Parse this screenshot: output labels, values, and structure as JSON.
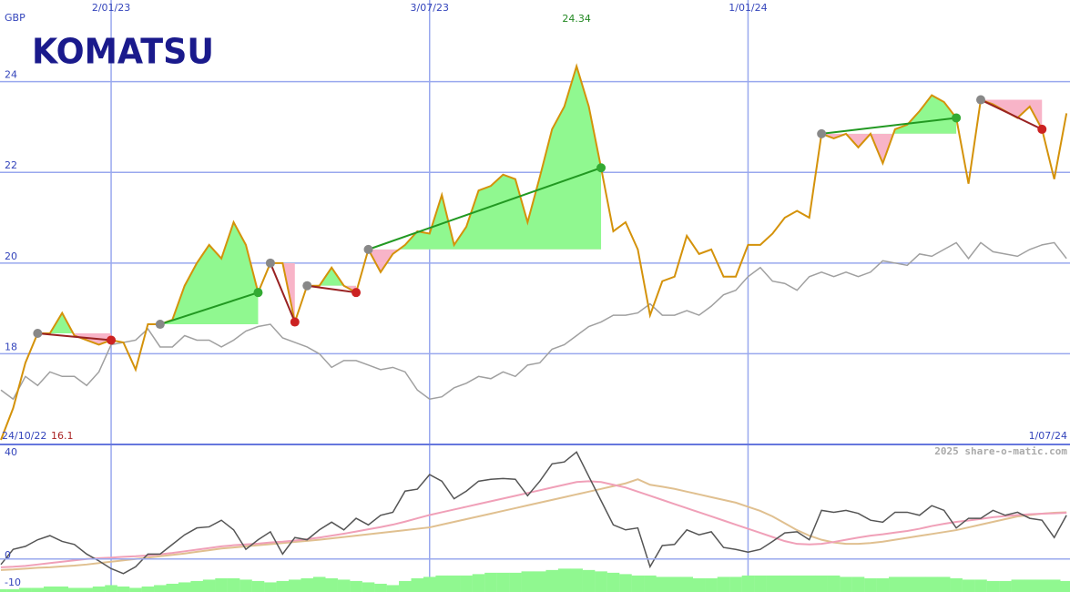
{
  "logo": "KOMATSU",
  "credit": "2025 share-o-matic.com",
  "chart_data": [
    {
      "type": "line",
      "y_unit": "GBP",
      "start_label": "24/10/22",
      "end_label": "1/07/24",
      "max_value": 24.34,
      "min_value": 16.1,
      "categories": [
        null,
        null,
        null,
        null,
        null,
        null,
        null,
        null,
        null,
        "2/01/23",
        null,
        null,
        null,
        null,
        null,
        null,
        null,
        null,
        null,
        null,
        null,
        null,
        null,
        null,
        null,
        null,
        null,
        null,
        null,
        null,
        null,
        null,
        null,
        null,
        null,
        "3/07/23",
        null,
        null,
        null,
        null,
        null,
        null,
        null,
        null,
        null,
        null,
        null,
        null,
        null,
        null,
        null,
        null,
        null,
        null,
        null,
        null,
        null,
        null,
        null,
        null,
        null,
        "1/01/24",
        null,
        null,
        null,
        null,
        null,
        null,
        null,
        null,
        null,
        null,
        null,
        null,
        null,
        null,
        null,
        null,
        null,
        null,
        null,
        null,
        null,
        null,
        null,
        null,
        null,
        null
      ],
      "ylim": [
        16,
        25.8
      ],
      "yticks": [
        18,
        20,
        22,
        24
      ],
      "grid": true,
      "series": [
        {
          "color": "#a0a0a0",
          "values": [
            17.2,
            17.0,
            17.5,
            17.3,
            17.6,
            17.5,
            17.5,
            17.3,
            17.6,
            18.2,
            18.25,
            18.3,
            18.55,
            18.15,
            18.15,
            18.4,
            18.3,
            18.3,
            18.15,
            18.3,
            18.5,
            18.6,
            18.65,
            18.35,
            18.25,
            18.15,
            18.0,
            17.7,
            17.85,
            17.85,
            17.75,
            17.65,
            17.7,
            17.6,
            17.2,
            17.0,
            17.05,
            17.25,
            17.35,
            17.5,
            17.45,
            17.6,
            17.5,
            17.75,
            17.8,
            18.1,
            18.2,
            18.4,
            18.6,
            18.7,
            18.85,
            18.85,
            18.9,
            19.1,
            18.85,
            18.85,
            18.95,
            18.85,
            19.05,
            19.3,
            19.4,
            19.7,
            19.9,
            19.6,
            19.55,
            19.4,
            19.7,
            19.8,
            19.7,
            19.8,
            19.7,
            19.8,
            20.05,
            20.0,
            19.95,
            20.2,
            20.15,
            20.3,
            20.45,
            20.1,
            20.45,
            20.25,
            20.2,
            20.15,
            20.3,
            20.4,
            20.45,
            20.1
          ]
        },
        {
          "color": "#d4920a",
          "values": [
            16.1,
            16.8,
            17.8,
            18.45,
            18.45,
            18.9,
            18.4,
            18.3,
            18.2,
            18.3,
            18.25,
            17.65,
            18.65,
            18.65,
            18.75,
            19.5,
            20.0,
            20.4,
            20.1,
            20.9,
            20.4,
            19.35,
            20.0,
            20.0,
            18.7,
            19.5,
            19.5,
            19.9,
            19.5,
            19.35,
            20.3,
            19.8,
            20.2,
            20.4,
            20.7,
            20.65,
            21.5,
            20.4,
            20.8,
            21.6,
            21.7,
            21.95,
            21.85,
            20.9,
            21.9,
            22.95,
            23.45,
            24.34,
            23.45,
            22.1,
            20.7,
            20.9,
            20.3,
            18.85,
            19.6,
            19.7,
            20.6,
            20.2,
            20.3,
            19.7,
            19.7,
            20.4,
            20.4,
            20.65,
            21.0,
            21.15,
            21.0,
            22.85,
            22.75,
            22.85,
            22.55,
            22.85,
            22.2,
            22.95,
            23.05,
            23.35,
            23.7,
            23.55,
            23.2,
            21.75,
            23.6,
            23.5,
            23.35,
            23.2,
            23.45,
            22.95,
            21.85,
            23.3
          ]
        }
      ],
      "signals": [
        {
          "start": 3,
          "end": 9
        },
        {
          "start": 13,
          "end": 21
        },
        {
          "start": 22,
          "end": 24
        },
        {
          "start": 25,
          "end": 29
        },
        {
          "start": 30,
          "end": 49
        },
        {
          "start": 67,
          "end": 78
        },
        {
          "start": 80,
          "end": 85
        }
      ],
      "signal_colors": {
        "up_line": "#229922",
        "down_line": "#992222",
        "up_fill": "#90f890",
        "down_fill": "#f8b4c8",
        "start_dot": "#888888",
        "up_dot": "#33aa33",
        "down_dot": "#cc2222"
      }
    },
    {
      "type": "line",
      "ylim": [
        -12,
        41
      ],
      "yticks": [
        40,
        0,
        -10
      ],
      "series": [
        {
          "color": "#90f890",
          "style": "bar",
          "values": [
            -11,
            -11,
            -10.5,
            -10.5,
            -10,
            -10,
            -10.5,
            -10.5,
            -10,
            -9.5,
            -10,
            -10.5,
            -10,
            -9.5,
            -9,
            -8.5,
            -8,
            -7.5,
            -7,
            -7,
            -7.5,
            -8,
            -8.5,
            -8,
            -7.5,
            -7,
            -6.5,
            -7,
            -7.5,
            -8,
            -8.5,
            -9,
            -9.5,
            -8,
            -7,
            -6.5,
            -6,
            -6,
            -6,
            -5.5,
            -5,
            -5,
            -5,
            -4.5,
            -4.5,
            -4,
            -3.5,
            -3.5,
            -4,
            -4.5,
            -5,
            -5.5,
            -6,
            -6,
            -6.5,
            -6.5,
            -6.5,
            -7,
            -7,
            -6.5,
            -6.5,
            -6,
            -6,
            -6,
            -6,
            -6,
            -6,
            -6,
            -6,
            -6.5,
            -6.5,
            -7,
            -7,
            -6.5,
            -6.5,
            -6.5,
            -6.5,
            -6.5,
            -7,
            -7.5,
            -7.5,
            -8,
            -8,
            -7.5,
            -7.5,
            -7.5,
            -7.5,
            -8
          ]
        },
        {
          "color": "#e0c090",
          "values": [
            -4,
            -3.8,
            -3.5,
            -3.2,
            -3,
            -2.7,
            -2.4,
            -2,
            -1.5,
            -1,
            -0.5,
            0,
            0.5,
            1,
            1.5,
            2,
            2.6,
            3.2,
            3.8,
            4.2,
            4.6,
            5,
            5.4,
            5.8,
            6.2,
            6.6,
            7,
            7.5,
            8,
            8.5,
            9,
            9.5,
            10,
            10.5,
            11,
            11.5,
            12.5,
            13.5,
            14.5,
            15.5,
            16.5,
            17.5,
            18.5,
            19.5,
            20.5,
            21.5,
            22.5,
            23.5,
            24.5,
            25.5,
            26.5,
            27.5,
            29,
            27,
            26.3,
            25.5,
            24.5,
            23.5,
            22.5,
            21.5,
            20.5,
            19,
            17.5,
            15.5,
            13,
            10.5,
            8.5,
            7,
            6,
            5.5,
            5.5,
            5.8,
            6.3,
            7,
            7.7,
            8.4,
            9.1,
            9.8,
            10.5,
            11.5,
            12.5,
            13.5,
            14.5,
            15.5,
            16,
            16.5,
            16.8,
            17
          ]
        },
        {
          "color": "#f0a0b8",
          "values": [
            -3,
            -2.8,
            -2.5,
            -2,
            -1.5,
            -1,
            -0.5,
            0,
            0.3,
            0.5,
            0.8,
            1,
            1.3,
            1.7,
            2.2,
            2.8,
            3.4,
            4,
            4.6,
            5,
            5.3,
            5.6,
            6,
            6.3,
            6.7,
            7.2,
            7.8,
            8.5,
            9.2,
            10,
            10.8,
            11.6,
            12.5,
            13.6,
            14.8,
            16,
            17,
            18,
            19,
            20,
            21,
            22,
            23,
            24,
            25,
            26,
            27,
            28,
            28.3,
            28,
            27,
            26,
            24.5,
            23,
            21.5,
            20,
            18.5,
            17,
            15.5,
            14,
            12.5,
            11,
            9.5,
            8,
            6.5,
            5.5,
            5.3,
            5.5,
            6.2,
            7,
            7.8,
            8.5,
            9,
            9.6,
            10.2,
            11,
            12,
            12.8,
            13.5,
            14,
            14.6,
            15.2,
            15.6,
            16,
            16.3,
            16.5,
            16.6,
            16.8
          ]
        },
        {
          "color": "#555555",
          "values": [
            -2,
            3.5,
            4.6,
            7,
            8.5,
            6.4,
            5.3,
            1.8,
            -0.7,
            -3.5,
            -5.3,
            -2.8,
            1.8,
            1.8,
            5.3,
            8.8,
            11.3,
            11.7,
            14.1,
            10.6,
            3.5,
            7,
            9.9,
            1.8,
            7.8,
            7,
            10.6,
            13.4,
            10.6,
            14.8,
            12.4,
            15.9,
            17,
            24.7,
            25.4,
            30.7,
            28.3,
            21.9,
            24.7,
            28.3,
            29,
            29.3,
            29,
            23,
            28.3,
            34.6,
            35.3,
            38.9,
            30,
            21.2,
            12.4,
            10.6,
            11.3,
            -2.8,
            4.9,
            5.3,
            10.6,
            8.8,
            9.9,
            4.2,
            3.5,
            2.5,
            3.5,
            6.4,
            9.5,
            9.9,
            7,
            17.7,
            17,
            17.7,
            16.6,
            14.1,
            13.4,
            17,
            17,
            15.9,
            19.4,
            17.7,
            11.3,
            14.8,
            14.8,
            17.7,
            15.9,
            17,
            14.8,
            14.1,
            7.8,
            15.9
          ]
        }
      ]
    }
  ]
}
